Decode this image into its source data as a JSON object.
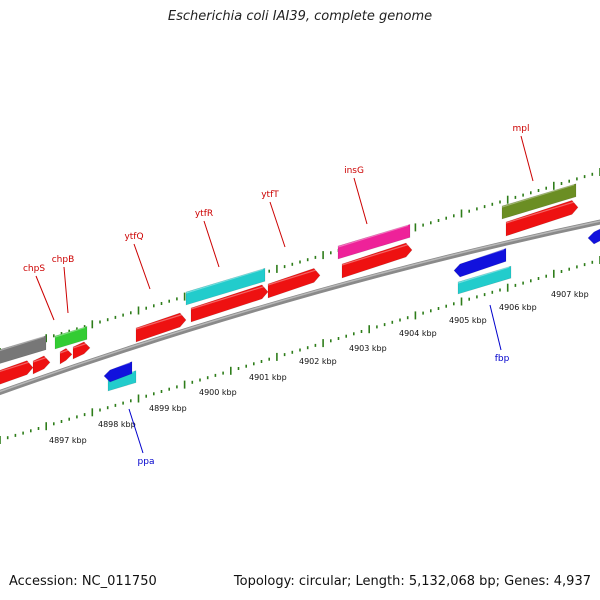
{
  "title": "Escherichia coli IAI39, complete genome",
  "footer": {
    "accession": "Accession: NC_011750",
    "summary": "Topology: circular; Length: 5,132,068 bp; Genes: 4,937"
  },
  "ticks": [
    "4897 kbp",
    "4898 kbp",
    "4899 kbp",
    "4900 kbp",
    "4901 kbp",
    "4902 kbp",
    "4903 kbp",
    "4904 kbp",
    "4905 kbp",
    "4906 kbp",
    "4907 kbp"
  ],
  "genes_top": [
    {
      "name": "chpS",
      "color": "#cc0000"
    },
    {
      "name": "chpB",
      "color": "#cc0000"
    },
    {
      "name": "ytfQ",
      "color": "#cc0000"
    },
    {
      "name": "ytfR",
      "color": "#cc0000"
    },
    {
      "name": "ytfT",
      "color": "#cc0000"
    },
    {
      "name": "insG",
      "color": "#cc0000"
    },
    {
      "name": "mpl",
      "color": "#cc0000"
    }
  ],
  "genes_bottom": [
    {
      "name": "ppa",
      "color": "#0000cc"
    },
    {
      "name": "fbp",
      "color": "#0000cc"
    }
  ],
  "colors": {
    "cds": "#ee1111",
    "backbone": "#888888",
    "tick_green": "#2e7d1a",
    "gray_feature": "#777777",
    "green_feature": "#33cc33",
    "cyan_feature": "#22cccc",
    "magenta_feature": "#ee2299",
    "olive_feature": "#6b8e23",
    "blue_feature": "#1111dd"
  }
}
